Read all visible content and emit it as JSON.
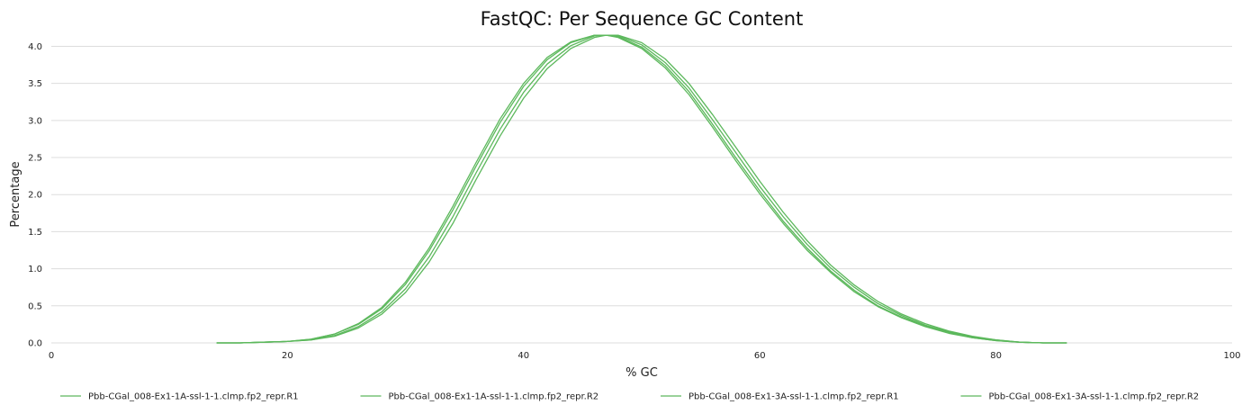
{
  "chart_data": {
    "type": "line",
    "title": "FastQC: Per Sequence GC Content",
    "xlabel": "% GC",
    "ylabel": "Percentage",
    "xlim": [
      0,
      100
    ],
    "ylim": [
      0,
      4.2
    ],
    "xticks": [
      "0",
      "20",
      "40",
      "60",
      "80",
      "100"
    ],
    "yticks": [
      "0.0",
      "0.5",
      "1.0",
      "1.5",
      "2.0",
      "2.5",
      "3.0",
      "3.5",
      "4.0"
    ],
    "grid": "horizontal",
    "legend_position": "bottom",
    "color": "#5cb85c",
    "x": [
      14,
      16,
      18,
      20,
      22,
      24,
      26,
      28,
      30,
      32,
      34,
      36,
      38,
      40,
      42,
      44,
      46,
      47,
      48,
      50,
      52,
      54,
      56,
      58,
      60,
      62,
      64,
      66,
      68,
      70,
      72,
      74,
      76,
      78,
      80,
      82,
      84,
      86
    ],
    "series": [
      {
        "name": "Pbb-CGal_008-Ex1-1A-ssl-1-1.clmp.fp2_repr.R1",
        "values": [
          0,
          0,
          0.01,
          0.02,
          0.05,
          0.12,
          0.26,
          0.48,
          0.82,
          1.28,
          1.84,
          2.44,
          3.02,
          3.5,
          3.85,
          4.06,
          4.15,
          4.15,
          4.12,
          3.97,
          3.71,
          3.35,
          2.91,
          2.45,
          2.01,
          1.61,
          1.25,
          0.95,
          0.69,
          0.49,
          0.34,
          0.22,
          0.13,
          0.07,
          0.03,
          0.01,
          0,
          0
        ]
      },
      {
        "name": "Pbb-CGal_008-Ex1-1A-ssl-1-1.clmp.fp2_repr.R2",
        "values": [
          0,
          0,
          0.01,
          0.02,
          0.04,
          0.1,
          0.22,
          0.42,
          0.73,
          1.16,
          1.7,
          2.3,
          2.88,
          3.38,
          3.76,
          4.01,
          4.14,
          4.15,
          4.14,
          4.02,
          3.78,
          3.44,
          3.01,
          2.56,
          2.11,
          1.7,
          1.33,
          1.01,
          0.75,
          0.53,
          0.37,
          0.24,
          0.15,
          0.08,
          0.04,
          0.01,
          0,
          0
        ]
      },
      {
        "name": "Pbb-CGal_008-Ex1-3A-ssl-1-1.clmp.fp2_repr.R1",
        "values": [
          0,
          0,
          0.01,
          0.02,
          0.05,
          0.12,
          0.25,
          0.46,
          0.79,
          1.24,
          1.79,
          2.39,
          2.97,
          3.46,
          3.82,
          4.05,
          4.15,
          4.15,
          4.13,
          3.99,
          3.74,
          3.39,
          2.95,
          2.49,
          2.05,
          1.64,
          1.28,
          0.97,
          0.71,
          0.5,
          0.35,
          0.23,
          0.14,
          0.07,
          0.03,
          0.01,
          0,
          0
        ]
      },
      {
        "name": "Pbb-CGal_008-Ex1-3A-ssl-1-1.clmp.fp2_repr.R2",
        "values": [
          0,
          0,
          0.01,
          0.02,
          0.04,
          0.09,
          0.2,
          0.39,
          0.68,
          1.09,
          1.61,
          2.21,
          2.79,
          3.3,
          3.7,
          3.97,
          4.12,
          4.15,
          4.15,
          4.05,
          3.83,
          3.5,
          3.08,
          2.63,
          2.18,
          1.76,
          1.38,
          1.05,
          0.78,
          0.56,
          0.39,
          0.26,
          0.16,
          0.09,
          0.04,
          0.01,
          0,
          0
        ]
      }
    ]
  }
}
